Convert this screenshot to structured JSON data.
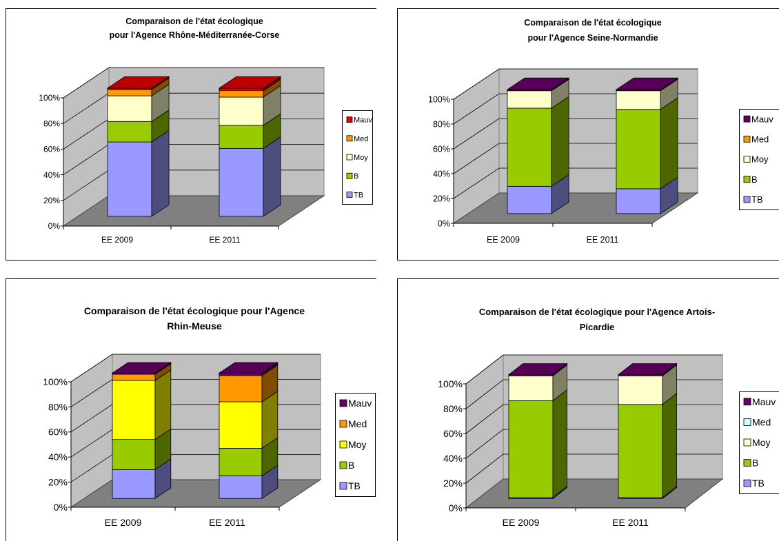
{
  "charts": [
    {
      "type": "bar",
      "stacked": true,
      "three_d": true,
      "title_lines": [
        "Comparaison de l'état écologique",
        "pour l'Agence Rhône-Méditerranée-Corse"
      ],
      "categories": [
        "EE 2009",
        "EE 2011"
      ],
      "y_tick_labels": [
        "0%",
        "20%",
        "40%",
        "60%",
        "80%",
        "100%"
      ],
      "ylim": [
        0,
        100
      ],
      "series": [
        {
          "name": "TB",
          "color": "#9999ff",
          "values": [
            58,
            53
          ]
        },
        {
          "name": "B",
          "color": "#99cc00",
          "values": [
            16,
            18
          ]
        },
        {
          "name": "Moy",
          "color": "#ffffcc",
          "values": [
            20,
            22
          ]
        },
        {
          "name": "Med",
          "color": "#ff9900",
          "values": [
            5,
            5
          ]
        },
        {
          "name": "Mauv",
          "color": "#dd0000",
          "values": [
            1,
            2
          ]
        }
      ],
      "legend": [
        "Mauv",
        "Med",
        "Moy",
        "B",
        "TB"
      ],
      "legend_position": "right"
    },
    {
      "type": "bar",
      "stacked": true,
      "three_d": true,
      "title_lines": [
        "Comparaison de l'état écologique",
        "pour l'Agence Seine-Normandie"
      ],
      "categories": [
        "EE 2009",
        "EE 2011"
      ],
      "y_tick_labels": [
        "0%",
        "20%",
        "40%",
        "60%",
        "80%",
        "100%"
      ],
      "ylim": [
        0,
        100
      ],
      "series": [
        {
          "name": "TB",
          "color": "#9999ff",
          "values": [
            22,
            20
          ]
        },
        {
          "name": "B",
          "color": "#99cc00",
          "values": [
            63,
            64
          ]
        },
        {
          "name": "Moy",
          "color": "#ffffcc",
          "values": [
            14,
            15
          ]
        },
        {
          "name": "Med",
          "color": "#ff9900",
          "values": [
            0,
            0
          ]
        },
        {
          "name": "Mauv",
          "color": "#660066",
          "values": [
            1,
            1
          ]
        }
      ],
      "legend": [
        "Mauv",
        "Med",
        "Moy",
        "B",
        "TB"
      ],
      "legend_position": "right"
    },
    {
      "type": "bar",
      "stacked": true,
      "three_d": true,
      "title_lines": [
        "Comparaison de l'état écologique pour l'Agence",
        "Rhin-Meuse"
      ],
      "categories": [
        "EE 2009",
        "EE 2011"
      ],
      "y_tick_labels": [
        "0%",
        "20%",
        "40%",
        "60%",
        "80%",
        "100%"
      ],
      "ylim": [
        0,
        100
      ],
      "series": [
        {
          "name": "TB",
          "color": "#9999ff",
          "values": [
            23,
            18
          ]
        },
        {
          "name": "B",
          "color": "#99cc00",
          "values": [
            24,
            22
          ]
        },
        {
          "name": "Moy",
          "color": "#ffff00",
          "values": [
            47,
            37
          ]
        },
        {
          "name": "Med",
          "color": "#ff9900",
          "values": [
            5,
            21
          ]
        },
        {
          "name": "Mauv",
          "color": "#660066",
          "values": [
            1,
            2
          ]
        }
      ],
      "legend": [
        "Mauv",
        "Med",
        "Moy",
        "B",
        "TB"
      ],
      "legend_position": "right"
    },
    {
      "type": "bar",
      "stacked": true,
      "three_d": true,
      "title_lines": [
        "Comparaison de l'état écologique pour l'Agence Artois-",
        "Picardie"
      ],
      "categories": [
        "EE 2009",
        "EE 2011"
      ],
      "y_tick_labels": [
        "0%",
        "20%",
        "40%",
        "60%",
        "80%",
        "100%"
      ],
      "ylim": [
        0,
        100
      ],
      "series": [
        {
          "name": "TB",
          "color": "#9999ff",
          "values": [
            1,
            1
          ]
        },
        {
          "name": "B",
          "color": "#99cc00",
          "values": [
            78,
            75
          ]
        },
        {
          "name": "Moy",
          "color": "#ffffcc",
          "values": [
            20,
            23
          ]
        },
        {
          "name": "Med",
          "color": "#ccffff",
          "values": [
            0,
            0
          ]
        },
        {
          "name": "Mauv",
          "color": "#660066",
          "values": [
            1,
            1
          ]
        }
      ],
      "legend": [
        "Mauv",
        "Med",
        "Moy",
        "B",
        "TB"
      ],
      "legend_position": "right"
    }
  ]
}
